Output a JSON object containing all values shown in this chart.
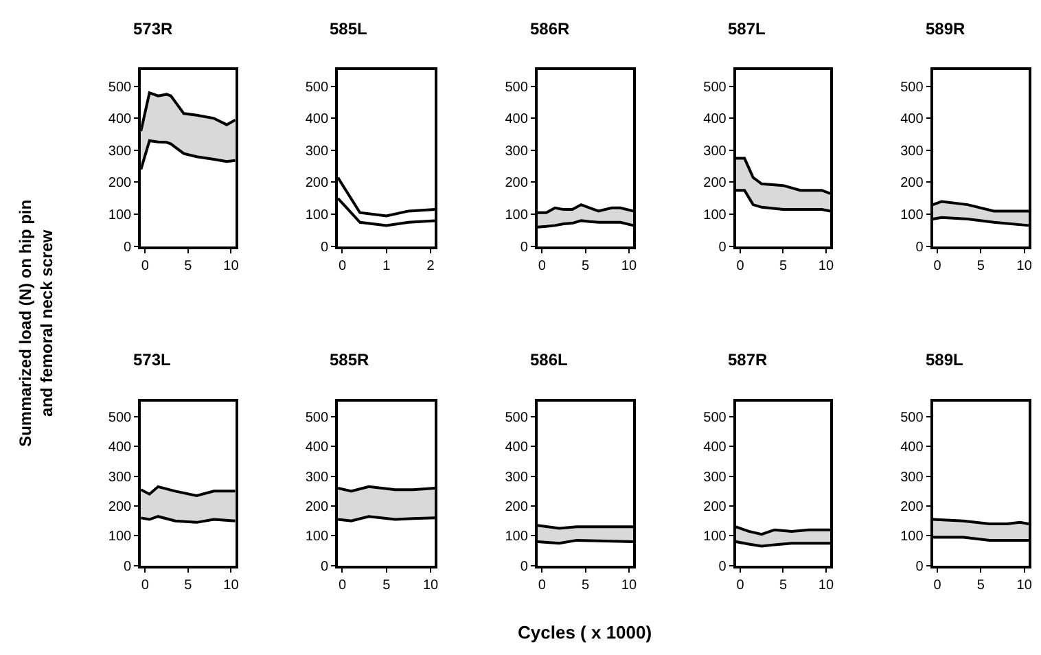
{
  "chart_data": [
    {
      "type": "line",
      "title": "573R",
      "ylabel": "Summarized load (N) on hip pin and femoral neck screw",
      "xlim": [
        -0.5,
        10.5
      ],
      "xticks": [
        0,
        5,
        10
      ],
      "ylim": [
        0,
        550
      ],
      "yticks": [
        0,
        100,
        200,
        300,
        400,
        500
      ],
      "series": [
        {
          "color": "#000000",
          "x": [
            -0.5,
            0.5,
            1.5,
            2.5,
            3,
            4.5,
            6,
            8,
            9.5,
            10.5
          ],
          "values": [
            240,
            330,
            326,
            325,
            320,
            290,
            280,
            272,
            265,
            268
          ]
        },
        {
          "color": "#000000",
          "x": [
            -0.5,
            0.5,
            1.5,
            2.5,
            3,
            4.5,
            6,
            8,
            9.5,
            10.5
          ],
          "values": [
            360,
            480,
            470,
            475,
            470,
            415,
            410,
            400,
            380,
            395
          ],
          "upper": [
            360,
            480,
            470,
            475,
            470,
            415,
            410,
            400,
            380,
            395
          ],
          "lower": [
            240,
            330,
            326,
            325,
            320,
            290,
            280,
            272,
            265,
            268
          ]
        }
      ]
    },
    {
      "type": "line",
      "title": "585L",
      "xlim": [
        -0.1,
        2.1
      ],
      "xticks": [
        0,
        1,
        2
      ],
      "ylim": [
        0,
        550
      ],
      "yticks": [
        0,
        100,
        200,
        300,
        400,
        500
      ],
      "series": [
        {
          "color": "#000000",
          "x": [
            -0.1,
            0.4,
            1,
            1.5,
            2.1
          ],
          "values": [
            150,
            75,
            65,
            75,
            80
          ]
        },
        {
          "color": "#000000",
          "x": [
            -0.1,
            0.4,
            1,
            1.5,
            2.1
          ],
          "values": [
            215,
            105,
            95,
            110,
            115
          ]
        }
      ]
    },
    {
      "type": "line",
      "title": "586R",
      "xlim": [
        -0.5,
        10.5
      ],
      "xticks": [
        0,
        5,
        10
      ],
      "ylim": [
        0,
        550
      ],
      "yticks": [
        0,
        100,
        200,
        300,
        400,
        500
      ],
      "series": [
        {
          "color": "#000000",
          "x": [
            -0.5,
            0.5,
            1.5,
            2.5,
            3.5,
            4.5,
            5.5,
            6.5,
            8,
            9,
            10.5
          ],
          "values": [
            60,
            62,
            65,
            70,
            72,
            80,
            77,
            75,
            75,
            75,
            65
          ]
        },
        {
          "color": "#000000",
          "x": [
            -0.5,
            0.5,
            1.5,
            2.5,
            3.5,
            4.5,
            5.5,
            6.5,
            8,
            9,
            10.5
          ],
          "values": [
            105,
            105,
            120,
            115,
            115,
            130,
            120,
            110,
            120,
            120,
            110
          ],
          "upper": [
            105,
            105,
            120,
            115,
            115,
            130,
            120,
            110,
            120,
            120,
            110
          ],
          "lower": [
            60,
            62,
            65,
            70,
            72,
            80,
            77,
            75,
            75,
            75,
            65
          ]
        }
      ]
    },
    {
      "type": "line",
      "title": "587L",
      "xlim": [
        -0.5,
        10.5
      ],
      "xticks": [
        0,
        5,
        10
      ],
      "ylim": [
        0,
        550
      ],
      "yticks": [
        0,
        100,
        200,
        300,
        400,
        500
      ],
      "series": [
        {
          "color": "#000000",
          "x": [
            -0.5,
            0.5,
            1.5,
            2.5,
            5,
            7,
            9.5,
            10.5
          ],
          "values": [
            175,
            175,
            130,
            122,
            115,
            115,
            115,
            110
          ]
        },
        {
          "color": "#000000",
          "x": [
            -0.5,
            0.5,
            1.5,
            2.5,
            5,
            7,
            9.5,
            10.5
          ],
          "values": [
            275,
            275,
            215,
            195,
            190,
            175,
            175,
            165
          ],
          "upper": [
            275,
            275,
            215,
            195,
            190,
            175,
            175,
            165
          ],
          "lower": [
            175,
            175,
            130,
            122,
            115,
            115,
            115,
            110
          ]
        }
      ]
    },
    {
      "type": "line",
      "title": "589R",
      "xlim": [
        -0.5,
        10.5
      ],
      "xticks": [
        0,
        5,
        10
      ],
      "ylim": [
        0,
        550
      ],
      "yticks": [
        0,
        100,
        200,
        300,
        400,
        500
      ],
      "series": [
        {
          "color": "#000000",
          "x": [
            -0.5,
            0.5,
            3.5,
            6.5,
            10.5
          ],
          "values": [
            85,
            90,
            85,
            75,
            65
          ]
        },
        {
          "color": "#000000",
          "x": [
            -0.5,
            0.5,
            3.5,
            6.5,
            10.5
          ],
          "values": [
            130,
            140,
            130,
            110,
            110
          ],
          "upper": [
            130,
            140,
            130,
            110,
            110
          ],
          "lower": [
            85,
            90,
            85,
            75,
            65
          ]
        }
      ]
    },
    {
      "type": "line",
      "title": "573L",
      "xlim": [
        -0.5,
        10.5
      ],
      "xticks": [
        0,
        5,
        10
      ],
      "ylim": [
        0,
        550
      ],
      "yticks": [
        0,
        100,
        200,
        300,
        400,
        500
      ],
      "series": [
        {
          "color": "#000000",
          "x": [
            -0.5,
            0.5,
            1.5,
            3.5,
            6,
            8,
            10.5
          ],
          "values": [
            160,
            155,
            165,
            150,
            145,
            155,
            150
          ]
        },
        {
          "color": "#000000",
          "x": [
            -0.5,
            0.5,
            1.5,
            3.5,
            6,
            8,
            10.5
          ],
          "values": [
            255,
            240,
            265,
            250,
            235,
            250,
            250
          ],
          "upper": [
            255,
            240,
            265,
            250,
            235,
            250,
            250
          ],
          "lower": [
            160,
            155,
            165,
            150,
            145,
            155,
            150
          ]
        }
      ]
    },
    {
      "type": "line",
      "title": "585R",
      "xlim": [
        -0.5,
        10.5
      ],
      "xticks": [
        0,
        5,
        10
      ],
      "ylim": [
        0,
        550
      ],
      "yticks": [
        0,
        100,
        200,
        300,
        400,
        500
      ],
      "series": [
        {
          "color": "#000000",
          "x": [
            -0.5,
            1,
            3,
            6,
            8,
            10.5
          ],
          "values": [
            155,
            150,
            165,
            155,
            158,
            160
          ]
        },
        {
          "color": "#000000",
          "x": [
            -0.5,
            1,
            3,
            6,
            8,
            10.5
          ],
          "values": [
            260,
            250,
            265,
            255,
            255,
            260
          ],
          "upper": [
            260,
            250,
            265,
            255,
            255,
            260
          ],
          "lower": [
            155,
            150,
            165,
            155,
            158,
            160
          ]
        }
      ]
    },
    {
      "type": "line",
      "title": "586L",
      "xlabel": "Cycles ( x 1000)",
      "xlim": [
        -0.5,
        10.5
      ],
      "xticks": [
        0,
        5,
        10
      ],
      "ylim": [
        0,
        550
      ],
      "yticks": [
        0,
        100,
        200,
        300,
        400,
        500
      ],
      "series": [
        {
          "color": "#000000",
          "x": [
            -0.5,
            2,
            4,
            10.5
          ],
          "values": [
            80,
            75,
            85,
            80
          ]
        },
        {
          "color": "#000000",
          "x": [
            -0.5,
            2,
            4,
            10.5
          ],
          "values": [
            135,
            125,
            130,
            130
          ],
          "upper": [
            135,
            125,
            130,
            130
          ],
          "lower": [
            80,
            75,
            85,
            80
          ]
        }
      ]
    },
    {
      "type": "line",
      "title": "587R",
      "xlim": [
        -0.5,
        10.5
      ],
      "xticks": [
        0,
        5,
        10
      ],
      "ylim": [
        0,
        550
      ],
      "yticks": [
        0,
        100,
        200,
        300,
        400,
        500
      ],
      "series": [
        {
          "color": "#000000",
          "x": [
            -0.5,
            1,
            2.5,
            4,
            6,
            8,
            10.5
          ],
          "values": [
            80,
            72,
            65,
            70,
            75,
            75,
            75
          ]
        },
        {
          "color": "#000000",
          "x": [
            -0.5,
            1,
            2.5,
            4,
            6,
            8,
            10.5
          ],
          "values": [
            130,
            115,
            105,
            120,
            115,
            120,
            120
          ],
          "upper": [
            130,
            115,
            105,
            120,
            115,
            120,
            120
          ],
          "lower": [
            80,
            72,
            65,
            70,
            75,
            75,
            75
          ]
        }
      ]
    },
    {
      "type": "line",
      "title": "589L",
      "xlim": [
        -0.5,
        10.5
      ],
      "xticks": [
        0,
        5,
        10
      ],
      "ylim": [
        0,
        550
      ],
      "yticks": [
        0,
        100,
        200,
        300,
        400,
        500
      ],
      "series": [
        {
          "color": "#000000",
          "x": [
            -0.5,
            3,
            6,
            8,
            9.5,
            10.5
          ],
          "values": [
            95,
            95,
            85,
            85,
            85,
            85
          ]
        },
        {
          "color": "#000000",
          "x": [
            -0.5,
            3,
            6,
            8,
            9.5,
            10.5
          ],
          "values": [
            155,
            150,
            140,
            140,
            145,
            140
          ],
          "upper": [
            155,
            150,
            140,
            140,
            145,
            140
          ],
          "lower": [
            95,
            95,
            85,
            85,
            85,
            85
          ]
        }
      ]
    }
  ]
}
